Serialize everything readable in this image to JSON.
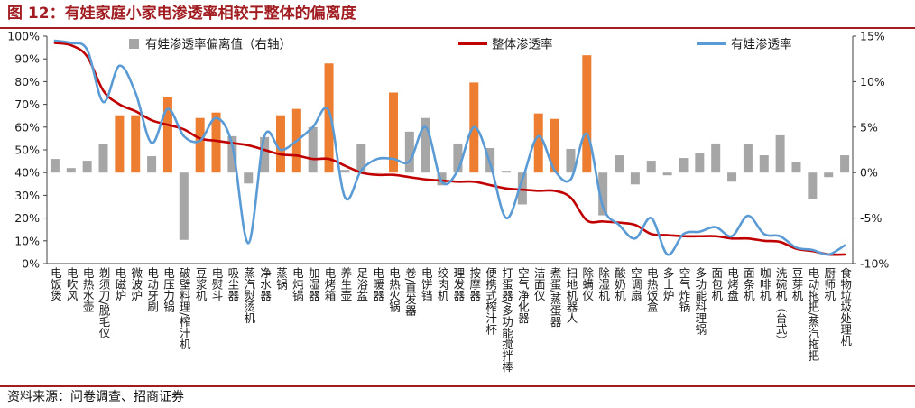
{
  "title": "图 12：有娃家庭小家电渗透率相较于整体的偏离度",
  "source": "资料来源：问卷调查、招商证券",
  "colors": {
    "title": "#a11d21",
    "rule": "#a11d21",
    "bar": "#a6a6a6",
    "bar_highlight": "#ed7d31",
    "overall_line": "#c00000",
    "kid_line": "#5b9bd5",
    "axis": "#404040"
  },
  "chart_data": {
    "type": "bar",
    "legend": "top",
    "grid": false,
    "categories": [
      "电饭煲",
      "电吹风",
      "电热水壶",
      "剃须刀/脱毛仪",
      "电磁炉",
      "微波炉",
      "电动牙刷",
      "电压力锅",
      "破壁料理/榨汁机",
      "豆浆机",
      "电熨斗",
      "吸尘器",
      "蒸汽熨烫机",
      "净水器",
      "蒸锅",
      "电炖锅",
      "加湿器",
      "电烤箱",
      "养生壶",
      "足浴盆",
      "电暖器",
      "电热火锅",
      "卷/直发器",
      "电饼铛",
      "绞肉机",
      "理发器",
      "按摩器",
      "便携式榨汁杯",
      "打蛋器/多功能搅拌棒",
      "空气净化器",
      "洁面仪",
      "煮蛋/蒸蛋器",
      "扫地机器人",
      "除螨仪",
      "除湿机",
      "酸奶机",
      "空调扇",
      "电热饭盒",
      "多士炉",
      "空气炸锅",
      "多功能料理锅",
      "面包机",
      "电烤盘",
      "面条机",
      "咖啡机",
      "洗碗机（台式）",
      "豆芽机",
      "电动拖把/蒸汽拖把",
      "厨师机",
      "食物垃圾处理机"
    ],
    "series": [
      {
        "name": "有娃渗透率偏离值（右轴）",
        "type": "bar",
        "axis": "right",
        "values": [
          1.5,
          0.5,
          1.3,
          3.1,
          6.3,
          6.3,
          1.8,
          8.3,
          -7.4,
          6.0,
          6.6,
          4.0,
          -1.2,
          3.9,
          6.3,
          7.0,
          5.0,
          12.0,
          0.3,
          3.1,
          0.1,
          8.8,
          4.5,
          6.0,
          -1.4,
          3.2,
          9.9,
          2.7,
          0.2,
          -3.5,
          6.5,
          5.9,
          2.6,
          12.9,
          -4.7,
          1.9,
          -1.3,
          1.3,
          -0.3,
          1.6,
          2.1,
          3.2,
          -1.0,
          3.1,
          1.9,
          4.1,
          1.2,
          -2.9,
          -0.5,
          1.9
        ]
      },
      {
        "name": "整体渗透率",
        "type": "line",
        "axis": "left",
        "values": [
          97,
          96,
          91,
          76,
          70,
          67,
          63,
          61,
          59,
          55,
          54,
          53,
          52,
          50,
          48,
          47.5,
          46,
          46,
          43,
          40,
          39,
          39,
          38,
          37,
          36.5,
          36,
          36,
          34.5,
          33,
          32.5,
          32,
          32,
          29,
          19,
          18.5,
          18,
          17,
          13,
          12.5,
          12,
          12,
          12,
          11,
          11,
          10,
          9.5,
          6.5,
          5.5,
          4,
          4
        ]
      },
      {
        "name": "有娃渗透率",
        "type": "line",
        "axis": "left",
        "values": [
          98,
          97,
          94,
          71,
          87,
          75,
          53,
          68,
          56,
          54,
          64,
          52,
          9,
          56,
          50,
          54,
          60,
          67,
          29,
          41,
          46,
          46,
          45,
          60,
          36,
          41,
          60,
          44,
          20,
          37,
          56,
          41,
          37,
          57,
          25,
          17,
          11,
          20,
          4,
          13,
          14,
          16,
          12,
          21,
          13,
          12,
          7,
          6,
          4,
          8
        ]
      }
    ],
    "highlight": [
      false,
      false,
      false,
      false,
      true,
      true,
      false,
      true,
      false,
      true,
      true,
      false,
      false,
      false,
      true,
      true,
      false,
      true,
      false,
      false,
      false,
      true,
      false,
      false,
      false,
      false,
      true,
      false,
      false,
      false,
      true,
      true,
      false,
      true,
      false,
      false,
      false,
      false,
      false,
      false,
      false,
      false,
      false,
      false,
      false,
      false,
      false,
      false,
      false,
      false
    ],
    "y_left": {
      "range": [
        0,
        100
      ],
      "ticks": [
        {
          "value": 0,
          "label": "0%"
        },
        {
          "value": 10,
          "label": "10%"
        },
        {
          "value": 20,
          "label": "20%"
        },
        {
          "value": 30,
          "label": "30%"
        },
        {
          "value": 40,
          "label": "40%"
        },
        {
          "value": 50,
          "label": "50%"
        },
        {
          "value": 60,
          "label": "60%"
        },
        {
          "value": 70,
          "label": "70%"
        },
        {
          "value": 80,
          "label": "80%"
        },
        {
          "value": 90,
          "label": "90%"
        },
        {
          "value": 100,
          "label": "100%"
        }
      ]
    },
    "y_right": {
      "range": [
        -10,
        15
      ],
      "ticks": [
        {
          "value": -10,
          "label": "-10%"
        },
        {
          "value": -5,
          "label": "-5%"
        },
        {
          "value": 0,
          "label": "0%"
        },
        {
          "value": 5,
          "label": "5%"
        },
        {
          "value": 10,
          "label": "10%"
        },
        {
          "value": 15,
          "label": "15%"
        }
      ]
    }
  }
}
